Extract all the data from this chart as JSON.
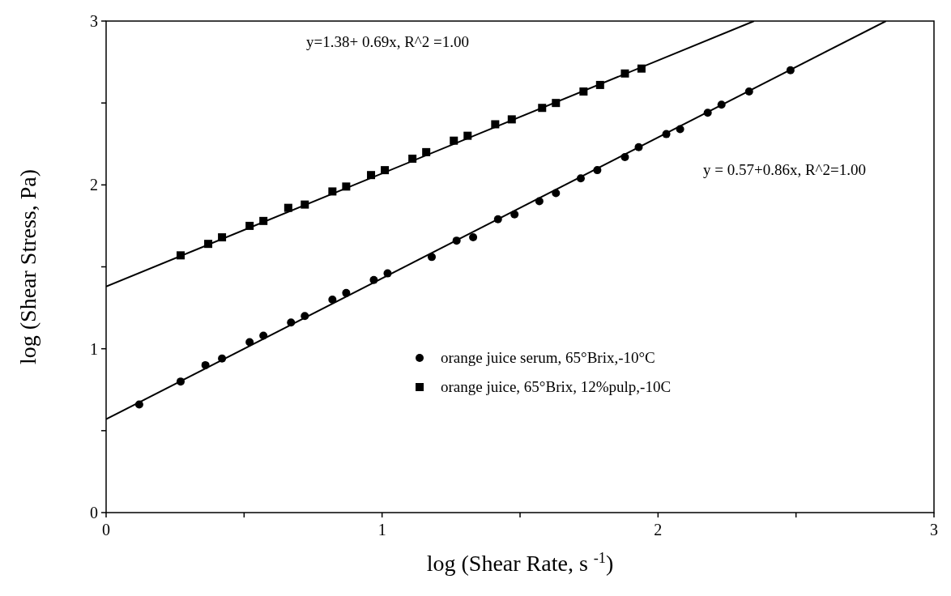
{
  "chart_data": {
    "type": "scatter",
    "xlabel": "log (Shear Rate, s $^{-1}$)",
    "ylabel": "log (Shear Stress, Pa)",
    "xlim": [
      0,
      3
    ],
    "ylim": [
      0,
      3
    ],
    "xticks": [
      0,
      {
        "value": 0.5,
        "label": null
      },
      1,
      {
        "value": 1.5,
        "label": null
      },
      2,
      {
        "value": 2.5,
        "label": null
      },
      3
    ],
    "yticks": [
      0,
      {
        "value": 0.5,
        "label": null
      },
      1,
      {
        "value": 1.5,
        "label": null
      },
      2,
      {
        "value": 2.5,
        "label": null
      },
      3
    ],
    "grid": false,
    "legend": "right",
    "annotations": [
      "y=1.38+ 0.69x, R^2 =1.00",
      "y = 0.57+0.86x, R^2=1.00"
    ],
    "series": [
      {
        "name": "orange juice serum, 65°Brix,-10°C",
        "color": "#000000",
        "marker": "circle",
        "x": [
          0.12,
          0.27,
          0.36,
          0.42,
          0.52,
          0.57,
          0.67,
          0.72,
          0.82,
          0.87,
          0.97,
          1.02,
          1.18,
          1.27,
          1.33,
          1.42,
          1.48,
          1.57,
          1.63,
          1.72,
          1.78,
          1.88,
          1.93,
          2.03,
          2.08,
          2.18,
          2.23,
          2.33,
          2.48
        ],
        "values": [
          0.66,
          0.8,
          0.9,
          0.94,
          1.04,
          1.08,
          1.16,
          1.2,
          1.3,
          1.34,
          1.42,
          1.46,
          1.56,
          1.66,
          1.68,
          1.79,
          1.82,
          1.9,
          1.95,
          2.04,
          2.09,
          2.17,
          2.23,
          2.31,
          2.34,
          2.44,
          2.49,
          2.57,
          2.7
        ]
      },
      {
        "name": "orange juice, 65°Brix, 12%pulp,-10C",
        "color": "#000000",
        "marker": "square",
        "x": [
          0.27,
          0.37,
          0.42,
          0.52,
          0.57,
          0.66,
          0.72,
          0.82,
          0.87,
          0.96,
          1.01,
          1.11,
          1.16,
          1.26,
          1.31,
          1.41,
          1.47,
          1.58,
          1.63,
          1.73,
          1.79,
          1.88,
          1.94
        ],
        "values": [
          1.57,
          1.64,
          1.68,
          1.75,
          1.78,
          1.86,
          1.88,
          1.96,
          1.99,
          2.06,
          2.09,
          2.16,
          2.2,
          2.27,
          2.3,
          2.37,
          2.4,
          2.47,
          2.5,
          2.57,
          2.61,
          2.68,
          2.71
        ]
      },
      {
        "type": "line",
        "color": "#000000",
        "x": [
          0,
          2.348
        ],
        "values": [
          1.38,
          3
        ]
      },
      {
        "type": "line",
        "color": "#000000",
        "x": [
          0,
          2.826
        ],
        "values": [
          0.57,
          3
        ]
      }
    ]
  }
}
